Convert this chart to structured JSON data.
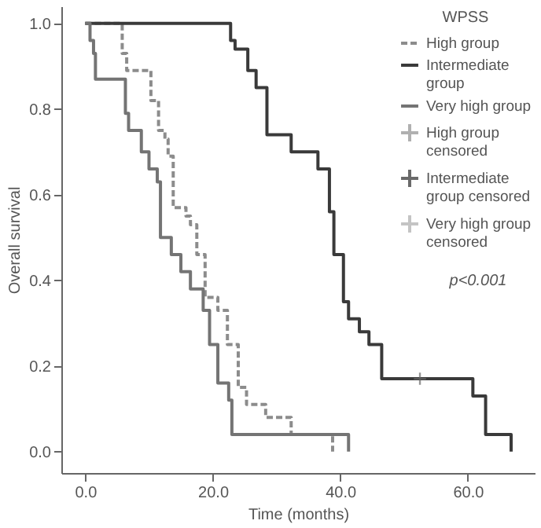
{
  "chart_data": {
    "type": "step",
    "xlabel": "Time (months)",
    "ylabel": "Overall survival",
    "legend_title": "WPSS",
    "legend": "top right",
    "grid": false,
    "xlim": [
      -3.75,
      70.5
    ],
    "ylim": [
      -0.05,
      1.04
    ],
    "xticks": [
      {
        "value": 0,
        "label": "0.0"
      },
      {
        "value": 20,
        "label": "20.0"
      },
      {
        "value": 40,
        "label": "40.0"
      },
      {
        "value": 60,
        "label": "60.0"
      }
    ],
    "yticks": [
      {
        "value": 0,
        "label": "0.0"
      },
      {
        "value": 0.2,
        "label": "0.2"
      },
      {
        "value": 0.4,
        "label": "0.4"
      },
      {
        "value": 0.6,
        "label": "0.6"
      },
      {
        "value": 0.8,
        "label": "0.8"
      },
      {
        "value": 1,
        "label": "1.0"
      }
    ],
    "annotations": [
      "p<0.001"
    ],
    "series": [
      {
        "name": "High group",
        "type": "step",
        "color": "#8c8c8c",
        "line_style": "dashed",
        "x": [
          0,
          5.8,
          6.5,
          10.3,
          11.5,
          12.5,
          13,
          13.8,
          15.8,
          16.5,
          17.5,
          18.8,
          20.8,
          22.3,
          24,
          25.3,
          28.3,
          32.3,
          38.8
        ],
        "values": [
          1,
          0.93,
          0.89,
          0.82,
          0.75,
          0.73,
          0.69,
          0.57,
          0.55,
          0.53,
          0.46,
          0.36,
          0.33,
          0.25,
          0.15,
          0.11,
          0.08,
          0.04,
          0
        ]
      },
      {
        "name": "Intermediate group",
        "type": "step",
        "color": "#3a3a3a",
        "line_style": "solid",
        "x": [
          0,
          22.8,
          23.5,
          25.5,
          26.8,
          28.5,
          32.3,
          36.5,
          38.3,
          39,
          40.5,
          41.3,
          43,
          44.5,
          46.5,
          60.8,
          62.8,
          66.8
        ],
        "values": [
          1,
          0.96,
          0.94,
          0.89,
          0.85,
          0.74,
          0.7,
          0.66,
          0.56,
          0.46,
          0.35,
          0.31,
          0.28,
          0.25,
          0.17,
          0.13,
          0.04,
          0
        ]
      },
      {
        "name": "Very high group",
        "type": "step",
        "color": "#747474",
        "line_style": "solid",
        "x": [
          0,
          0.75,
          1.3,
          1.6,
          6.3,
          6.8,
          8.8,
          10,
          11.3,
          11.8,
          13.5,
          15,
          16.5,
          18.5,
          19.5,
          20.8,
          22.5,
          23,
          41.3
        ],
        "values": [
          1,
          0.96,
          0.93,
          0.87,
          0.79,
          0.75,
          0.7,
          0.66,
          0.63,
          0.5,
          0.46,
          0.42,
          0.38,
          0.33,
          0.25,
          0.16,
          0.12,
          0.04,
          0
        ]
      },
      {
        "name": "High group censored",
        "type": "scatter",
        "marker": "cross",
        "color": "#b0b0b0"
      },
      {
        "name": "Intermediate group censored",
        "type": "scatter",
        "marker": "cross",
        "color": "#6a6a6a",
        "x": [
          52.5
        ],
        "values": [
          0.17
        ]
      },
      {
        "name": "Very high group censored",
        "type": "scatter",
        "marker": "cross",
        "color": "#c4c4c4"
      }
    ]
  }
}
